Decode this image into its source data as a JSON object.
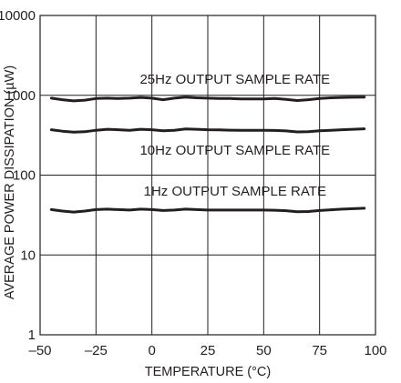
{
  "chart_data": {
    "type": "line",
    "title": "",
    "xlabel": "TEMPERATURE (°C)",
    "ylabel": "AVERAGE POWER DISSIPATION (µW)",
    "xlim": [
      -50,
      100
    ],
    "ylim": [
      1,
      10000
    ],
    "y_scale": "log",
    "grid": true,
    "line_color": "#231f20",
    "x_ticks": [
      -50,
      -25,
      0,
      25,
      50,
      75,
      100
    ],
    "x_tick_labels": [
      "–50",
      "–25",
      "0",
      "25",
      "50",
      "75",
      "100"
    ],
    "y_ticks": [
      1,
      10,
      100,
      1000,
      10000
    ],
    "y_tick_labels": [
      "1",
      "10",
      "100",
      "1000",
      "10000"
    ],
    "series": [
      {
        "name": "25Hz OUTPUT SAMPLE RATE",
        "x": [
          -45,
          -40,
          -35,
          -30,
          -25,
          -20,
          -15,
          -10,
          -5,
          0,
          5,
          10,
          15,
          20,
          25,
          30,
          35,
          40,
          45,
          50,
          55,
          60,
          65,
          70,
          75,
          80,
          85,
          90,
          95
        ],
        "y": [
          920,
          880,
          850,
          870,
          910,
          920,
          910,
          920,
          940,
          920,
          880,
          920,
          950,
          930,
          920,
          910,
          910,
          900,
          900,
          900,
          910,
          890,
          860,
          880,
          910,
          930,
          940,
          945,
          950
        ]
      },
      {
        "name": "10Hz OUTPUT SAMPLE RATE",
        "x": [
          -45,
          -40,
          -35,
          -30,
          -25,
          -20,
          -15,
          -10,
          -5,
          0,
          5,
          10,
          15,
          20,
          25,
          30,
          35,
          40,
          45,
          50,
          55,
          60,
          65,
          70,
          75,
          80,
          85,
          90,
          95
        ],
        "y": [
          370,
          355,
          345,
          350,
          365,
          375,
          370,
          365,
          375,
          370,
          360,
          365,
          378,
          375,
          370,
          368,
          366,
          365,
          365,
          365,
          363,
          358,
          348,
          350,
          360,
          365,
          370,
          375,
          380
        ]
      },
      {
        "name": "1Hz OUTPUT SAMPLE RATE",
        "x": [
          -45,
          -40,
          -35,
          -30,
          -25,
          -20,
          -15,
          -10,
          -5,
          0,
          5,
          10,
          15,
          20,
          25,
          30,
          35,
          40,
          45,
          50,
          55,
          60,
          65,
          70,
          75,
          80,
          85,
          90,
          95
        ],
        "y": [
          37,
          35.5,
          34.5,
          35.5,
          37,
          37.5,
          37,
          36.5,
          37.5,
          37,
          36,
          36.5,
          37.5,
          37,
          36.5,
          36.5,
          36.5,
          36.5,
          36.5,
          36.5,
          36.3,
          35.8,
          34.8,
          35,
          36,
          36.8,
          37.5,
          38,
          38.5
        ]
      }
    ]
  }
}
